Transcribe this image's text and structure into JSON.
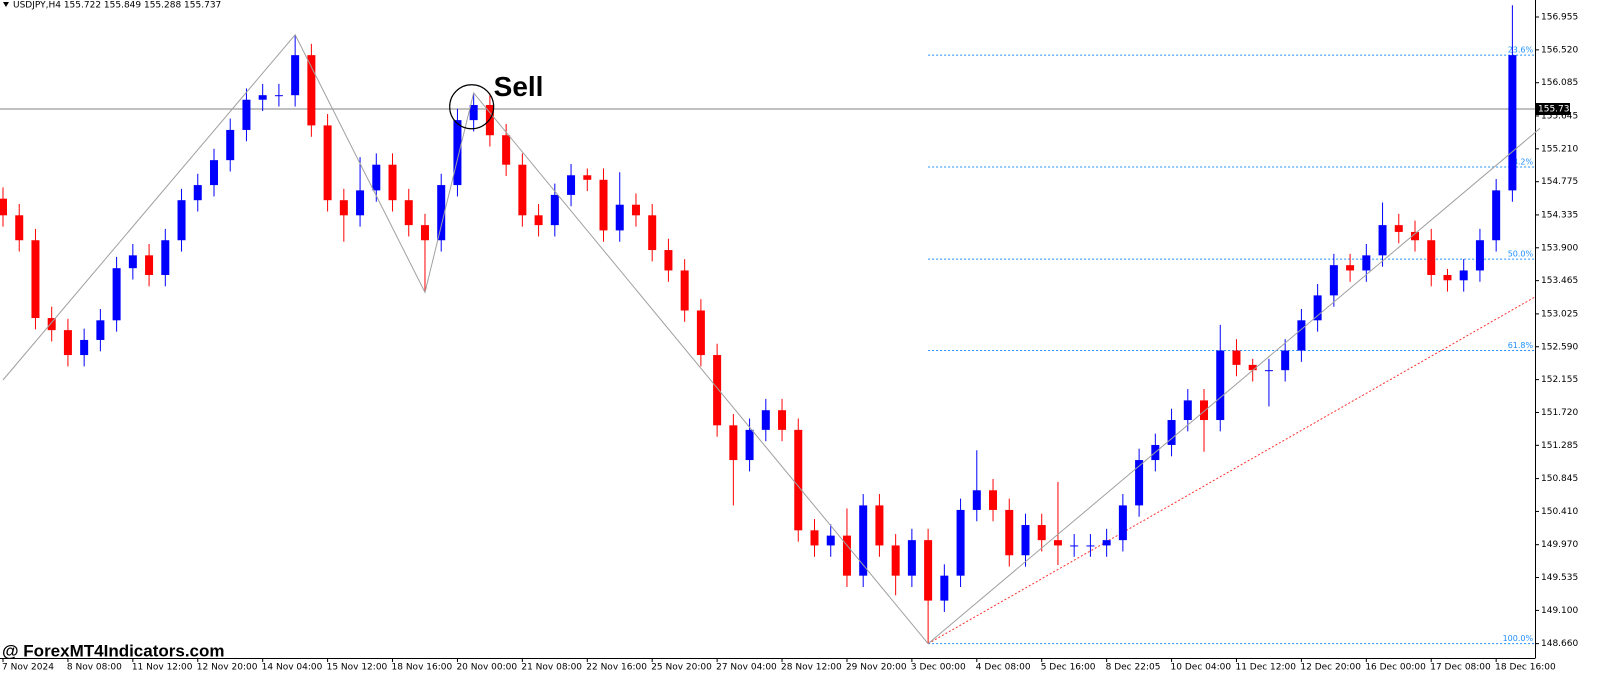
{
  "chart_data": {
    "type": "candlestick",
    "title": "USDJPY,H4  155.722 155.849 155.288 155.737",
    "categories": [
      "7 Nov 2024",
      null,
      null,
      null,
      "8 Nov 08:00",
      null,
      null,
      null,
      "11 Nov 12:00",
      null,
      null,
      null,
      "12 Nov 20:00",
      null,
      null,
      null,
      "14 Nov 04:00",
      null,
      null,
      null,
      "15 Nov 12:00",
      null,
      null,
      null,
      "18 Nov 16:00",
      null,
      null,
      null,
      "20 Nov 00:00",
      null,
      null,
      null,
      "21 Nov 08:00",
      null,
      null,
      null,
      "22 Nov 16:00",
      null,
      null,
      null,
      "25 Nov 20:00",
      null,
      null,
      null,
      "27 Nov 04:00",
      null,
      null,
      null,
      "28 Nov 12:00",
      null,
      null,
      null,
      "29 Nov 20:00",
      null,
      null,
      null,
      "3 Dec 00:00",
      null,
      null,
      null,
      "4 Dec 08:00",
      null,
      null,
      null,
      "5 Dec 16:00",
      null,
      null,
      null,
      "8 Dec 22:05",
      null,
      null,
      null,
      "10 Dec 04:00",
      null,
      null,
      null,
      "11 Dec 12:00",
      null,
      null,
      null,
      "12 Dec 20:00",
      null,
      null,
      null,
      "16 Dec 00:00",
      null,
      null,
      null,
      "17 Dec 08:00",
      null,
      null,
      null,
      "18 Dec 16:00",
      null
    ],
    "open": [
      154.55,
      154.33,
      154.0,
      152.97,
      152.81,
      152.48,
      152.68,
      152.94,
      153.63,
      153.8,
      153.54,
      154.0,
      154.53,
      154.73,
      155.06,
      155.46,
      155.86,
      155.92,
      155.92,
      156.45,
      155.52,
      154.53,
      154.33,
      154.66,
      155.0,
      154.53,
      154.2,
      154.0,
      154.73,
      155.59,
      155.79,
      155.39,
      155.0,
      154.33,
      154.2,
      154.6,
      154.86,
      154.8,
      154.13,
      154.47,
      154.33,
      153.87,
      153.6,
      153.07,
      152.48,
      151.55,
      151.09,
      151.49,
      151.75,
      151.49,
      150.16,
      149.96,
      150.09,
      149.56,
      150.49,
      149.96,
      149.56,
      150.03,
      149.23,
      149.56,
      150.43,
      150.69,
      150.43,
      149.83,
      150.23,
      150.03,
      149.96,
      149.96,
      149.96,
      150.03,
      150.49,
      151.09,
      151.29,
      151.62,
      151.88,
      151.62,
      152.54,
      152.35,
      152.28,
      152.28,
      152.54,
      152.94,
      153.27,
      153.67,
      153.6,
      153.8,
      154.2,
      154.11,
      154.0,
      153.54,
      153.47,
      153.6,
      154.0,
      154.66
    ],
    "high": [
      154.7,
      154.48,
      154.15,
      153.12,
      152.96,
      152.83,
      153.09,
      153.78,
      153.95,
      153.95,
      154.15,
      154.68,
      154.88,
      155.21,
      155.61,
      156.01,
      156.07,
      156.07,
      156.72,
      156.6,
      155.67,
      154.68,
      155.1,
      155.15,
      155.15,
      154.68,
      154.35,
      154.88,
      155.74,
      155.95,
      155.94,
      155.54,
      155.15,
      154.48,
      154.75,
      155.01,
      154.95,
      154.95,
      154.9,
      154.62,
      154.48,
      154.02,
      153.75,
      153.22,
      152.63,
      151.7,
      151.64,
      151.9,
      151.9,
      151.64,
      150.31,
      150.24,
      150.45,
      150.64,
      150.64,
      150.11,
      150.18,
      150.18,
      149.71,
      150.58,
      151.22,
      150.84,
      150.58,
      150.38,
      150.38,
      150.8,
      150.11,
      150.11,
      150.18,
      150.64,
      151.24,
      151.44,
      151.77,
      152.03,
      152.03,
      152.88,
      152.69,
      152.43,
      152.43,
      152.69,
      153.09,
      153.42,
      153.82,
      153.82,
      153.95,
      154.5,
      154.35,
      154.26,
      154.15,
      153.62,
      153.75,
      154.15,
      154.81,
      157.11
    ],
    "low": [
      154.18,
      153.85,
      152.82,
      152.66,
      152.33,
      152.33,
      152.53,
      152.79,
      153.48,
      153.39,
      153.39,
      153.85,
      154.38,
      154.58,
      154.91,
      155.31,
      155.71,
      155.77,
      155.77,
      155.37,
      154.38,
      153.98,
      154.18,
      154.51,
      154.38,
      154.05,
      153.31,
      153.85,
      154.58,
      155.44,
      155.24,
      154.85,
      154.18,
      154.05,
      154.05,
      154.45,
      154.65,
      153.98,
      153.98,
      154.18,
      153.72,
      153.45,
      152.92,
      152.33,
      151.4,
      150.49,
      150.94,
      151.34,
      151.34,
      150.01,
      149.81,
      149.81,
      149.41,
      149.41,
      149.81,
      149.3,
      149.41,
      148.66,
      149.08,
      149.41,
      150.28,
      150.28,
      149.68,
      149.68,
      149.88,
      149.7,
      149.81,
      149.81,
      149.81,
      149.88,
      150.34,
      150.94,
      151.14,
      151.47,
      151.2,
      151.47,
      152.2,
      152.13,
      151.8,
      152.13,
      152.39,
      152.79,
      153.12,
      153.45,
      153.45,
      153.65,
      153.96,
      153.85,
      153.39,
      153.32,
      153.32,
      153.45,
      153.85,
      154.51
    ],
    "close": [
      154.33,
      154.0,
      152.97,
      152.81,
      152.48,
      152.68,
      152.94,
      153.63,
      153.8,
      153.54,
      154.0,
      154.53,
      154.73,
      155.06,
      155.46,
      155.86,
      155.92,
      155.92,
      156.45,
      155.52,
      154.53,
      154.33,
      154.66,
      155.0,
      154.53,
      154.2,
      154.0,
      154.73,
      155.59,
      155.79,
      155.39,
      155.0,
      154.33,
      154.2,
      154.6,
      154.86,
      154.8,
      154.13,
      154.47,
      154.33,
      153.87,
      153.6,
      153.07,
      152.48,
      151.55,
      151.09,
      151.49,
      151.75,
      151.49,
      150.16,
      149.96,
      150.09,
      149.56,
      150.49,
      149.96,
      149.56,
      150.03,
      149.23,
      149.56,
      150.43,
      150.69,
      150.43,
      149.83,
      150.23,
      150.03,
      149.96,
      149.96,
      149.96,
      150.03,
      150.49,
      151.09,
      151.29,
      151.62,
      151.88,
      151.62,
      152.54,
      152.35,
      152.28,
      152.28,
      152.54,
      152.94,
      153.27,
      153.67,
      153.6,
      153.8,
      154.2,
      154.11,
      154.0,
      153.54,
      153.47,
      153.6,
      154.0,
      154.66,
      156.45
    ],
    "up_color": "#0000ff",
    "down_color": "#ff0000",
    "ylim": [
      148.47,
      157.18
    ],
    "yticks": [
      156.955,
      {
        "value": 156.52,
        "label": "156.520"
      },
      156.085,
      155.645,
      {
        "value": 155.21,
        "label": "155.210"
      },
      154.775,
      154.335,
      {
        "value": 153.9,
        "label": "153.900"
      },
      153.465,
      153.025,
      {
        "value": 152.59,
        "label": "152.590"
      },
      152.155,
      {
        "value": 151.72,
        "label": "151.720"
      },
      151.285,
      150.845,
      {
        "value": 150.41,
        "label": "150.410"
      },
      {
        "value": 149.97,
        "label": "149.970"
      },
      149.535,
      {
        "value": 149.1,
        "label": "149.100"
      },
      {
        "value": 148.66,
        "label": "148.660"
      }
    ],
    "current_price": 155.737,
    "zigzag": {
      "x": [
        0,
        18,
        26,
        29,
        57,
        94.7
      ],
      "values": [
        152.15,
        156.72,
        153.31,
        155.95,
        148.66,
        155.48
      ],
      "color": "#a0a0a0"
    },
    "fib": {
      "x": [
        57,
        94.4
      ],
      "color": "#1e90ff",
      "levels": [
        {
          "label": "23.6%",
          "value": 156.45
        },
        {
          "label": "38.2%",
          "value": 154.97
        },
        {
          "label": "50.0%",
          "value": 153.75
        },
        {
          "label": "61.8%",
          "value": 152.54
        },
        {
          "label": "100.0%",
          "value": 148.66
        }
      ]
    },
    "trendline": {
      "x": [
        57,
        94.4
      ],
      "values": [
        148.66,
        153.25
      ],
      "color": "#ff3030"
    },
    "annotation": {
      "text": "Sell",
      "x": 29,
      "value": 155.74
    },
    "watermark": "@ ForexMT4Indicators.com"
  }
}
